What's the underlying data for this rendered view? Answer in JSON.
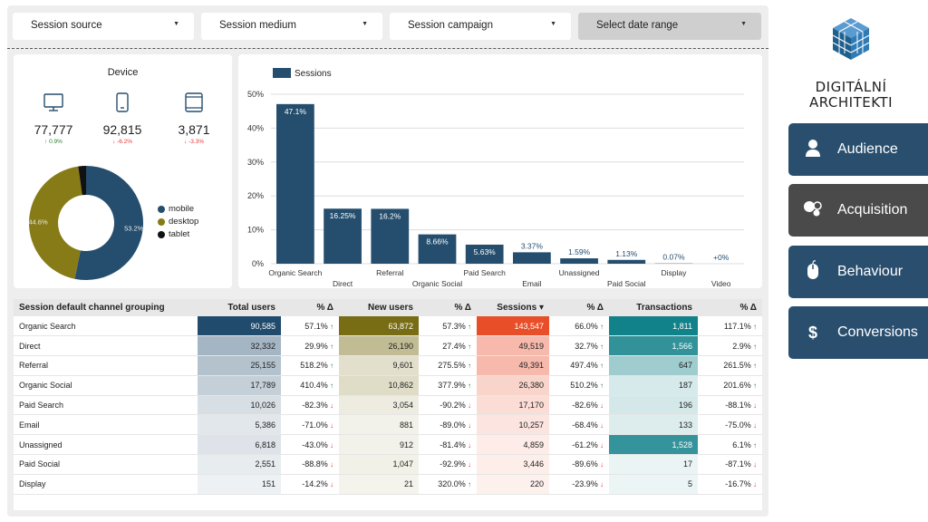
{
  "filters": {
    "source": "Session source",
    "medium": "Session medium",
    "campaign": "Session campaign",
    "date": "Select date range"
  },
  "device": {
    "title": "Device",
    "desktop": {
      "value": "77,777",
      "delta": "0.9%",
      "dir": "up"
    },
    "mobile": {
      "value": "92,815",
      "delta": "-6.2%",
      "dir": "down"
    },
    "tablet": {
      "value": "3,871",
      "delta": "-3.3%",
      "dir": "down"
    },
    "donut": [
      {
        "label": "mobile",
        "pct": 53.2,
        "pct_label": "53.2%",
        "color": "#254e6e"
      },
      {
        "label": "desktop",
        "pct": 44.6,
        "pct_label": "44.6%",
        "color": "#877b17"
      },
      {
        "label": "tablet",
        "pct": 2.2,
        "pct_label": "",
        "color": "#111111"
      }
    ]
  },
  "chart_data": {
    "type": "bar",
    "legend": "Sessions",
    "color": "#254e6e",
    "categories": [
      "Organic Search",
      "Direct",
      "Referral",
      "Organic Social",
      "Paid Search",
      "Email",
      "Unassigned",
      "Paid Social",
      "Display",
      "Video"
    ],
    "values": [
      47.1,
      16.25,
      16.2,
      8.66,
      5.63,
      3.37,
      1.59,
      1.13,
      0.07,
      0.0
    ],
    "labels": [
      "47.1%",
      "16.25%",
      "16.2%",
      "8.66%",
      "5.63%",
      "3.37%",
      "1.59%",
      "1.13%",
      "0.07%",
      "+0%"
    ],
    "ylim": [
      0,
      50
    ],
    "yticks": [
      "0%",
      "10%",
      "20%",
      "30%",
      "40%",
      "50%"
    ]
  },
  "table": {
    "headers": [
      "Session default channel grouping",
      "Total users",
      "% Δ",
      "New users",
      "% Δ",
      "Sessions ▾",
      "% Δ",
      "Transactions",
      "% Δ"
    ],
    "rows": [
      {
        "name": "Organic Search",
        "users": "90,585",
        "ud": "57.1%",
        "udir": "up",
        "newu": "63,872",
        "nd": "57.3%",
        "ndir": "up",
        "sess": "143,547",
        "sd": "66.0%",
        "sdir": "up",
        "tr": "1,811",
        "td": "117.1%",
        "tdir": "up",
        "ui": 1.0,
        "ni": 1.0,
        "si": 1.0,
        "ti": 1.0
      },
      {
        "name": "Direct",
        "users": "32,332",
        "ud": "29.9%",
        "udir": "up",
        "newu": "26,190",
        "nd": "27.4%",
        "ndir": "up",
        "sess": "49,519",
        "sd": "32.7%",
        "sdir": "up",
        "tr": "1,566",
        "td": "2.9%",
        "tdir": "up",
        "ui": 0.36,
        "ni": 0.41,
        "si": 0.34,
        "ti": 0.86
      },
      {
        "name": "Referral",
        "users": "25,155",
        "ud": "518.2%",
        "udir": "up",
        "newu": "9,601",
        "nd": "275.5%",
        "ndir": "up",
        "sess": "49,391",
        "sd": "497.4%",
        "sdir": "up",
        "tr": "647",
        "td": "261.5%",
        "tdir": "up",
        "ui": 0.28,
        "ni": 0.15,
        "si": 0.34,
        "ti": 0.36
      },
      {
        "name": "Organic Social",
        "users": "17,789",
        "ud": "410.4%",
        "udir": "up",
        "newu": "10,862",
        "nd": "377.9%",
        "ndir": "up",
        "sess": "26,380",
        "sd": "510.2%",
        "sdir": "up",
        "tr": "187",
        "td": "201.6%",
        "tdir": "up",
        "ui": 0.2,
        "ni": 0.17,
        "si": 0.18,
        "ti": 0.1
      },
      {
        "name": "Paid Search",
        "users": "10,026",
        "ud": "-82.3%",
        "udir": "down",
        "newu": "3,054",
        "nd": "-90.2%",
        "ndir": "down",
        "sess": "17,170",
        "sd": "-82.6%",
        "sdir": "down",
        "tr": "196",
        "td": "-88.1%",
        "tdir": "down",
        "ui": 0.11,
        "ni": 0.05,
        "si": 0.12,
        "ti": 0.11
      },
      {
        "name": "Email",
        "users": "5,386",
        "ud": "-71.0%",
        "udir": "down",
        "newu": "881",
        "nd": "-89.0%",
        "ndir": "down",
        "sess": "10,257",
        "sd": "-68.4%",
        "sdir": "down",
        "tr": "133",
        "td": "-75.0%",
        "tdir": "down",
        "ui": 0.06,
        "ni": 0.01,
        "si": 0.07,
        "ti": 0.07
      },
      {
        "name": "Unassigned",
        "users": "6,818",
        "ud": "-43.0%",
        "udir": "down",
        "newu": "912",
        "nd": "-81.4%",
        "ndir": "down",
        "sess": "4,859",
        "sd": "-61.2%",
        "sdir": "down",
        "tr": "1,528",
        "td": "6.1%",
        "tdir": "up",
        "ui": 0.08,
        "ni": 0.01,
        "si": 0.03,
        "ti": 0.84
      },
      {
        "name": "Paid Social",
        "users": "2,551",
        "ud": "-88.8%",
        "udir": "down",
        "newu": "1,047",
        "nd": "-92.9%",
        "ndir": "down",
        "sess": "3,446",
        "sd": "-89.6%",
        "sdir": "down",
        "tr": "17",
        "td": "-87.1%",
        "tdir": "down",
        "ui": 0.03,
        "ni": 0.02,
        "si": 0.02,
        "ti": 0.01
      },
      {
        "name": "Display",
        "users": "151",
        "ud": "-14.2%",
        "udir": "down",
        "newu": "21",
        "nd": "320.0%",
        "ndir": "up",
        "sess": "220",
        "sd": "-23.9%",
        "sdir": "down",
        "tr": "5",
        "td": "-16.7%",
        "tdir": "down",
        "ui": 0.0,
        "ni": 0.0,
        "si": 0.0,
        "ti": 0.0
      }
    ]
  },
  "brand": {
    "line1": "DIGITÁLNÍ",
    "line2": "ARCHITEKTI"
  },
  "nav": [
    {
      "label": "Audience",
      "icon": "user-icon"
    },
    {
      "label": "Acquisition",
      "icon": "acquisition-icon"
    },
    {
      "label": "Behaviour",
      "icon": "mouse-icon"
    },
    {
      "label": "Conversions",
      "icon": "dollar-icon"
    }
  ]
}
